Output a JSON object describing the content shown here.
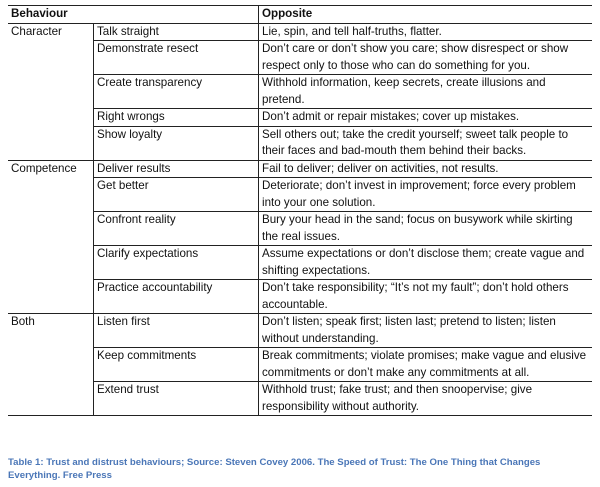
{
  "table": {
    "headers": [
      "Behaviour",
      "",
      "Opposite"
    ],
    "groups": [
      {
        "category": "Character",
        "rows": [
          {
            "behaviour": "Talk straight",
            "opposite": "Lie, spin, and tell half-truths, flatter."
          },
          {
            "behaviour": "Demonstrate resect",
            "opposite": "Don’t care or don’t show you care; show disrespect or show respect only to those who can do something for you."
          },
          {
            "behaviour": "Create transparency",
            "opposite": "Withhold information, keep secrets, create illusions and pretend."
          },
          {
            "behaviour": "Right wrongs",
            "opposite": "Don’t admit or repair mistakes; cover up mistakes."
          },
          {
            "behaviour": "Show loyalty",
            "opposite": "Sell others out; take the credit yourself; sweet talk people to their faces and bad-mouth them behind their backs."
          }
        ]
      },
      {
        "category": "Competence",
        "rows": [
          {
            "behaviour": "Deliver results",
            "opposite": "Fail to deliver; deliver on activities, not results."
          },
          {
            "behaviour": "Get better",
            "opposite": "Deteriorate; don’t invest in improvement; force every problem into your one solution."
          },
          {
            "behaviour": "Confront reality",
            "opposite": "Bury your head in the sand; focus on busywork while skirting the real issues."
          },
          {
            "behaviour": "Clarify expectations",
            "opposite": "Assume expectations or don’t disclose them; create vague and shifting expectations."
          },
          {
            "behaviour": "Practice accountability",
            "opposite": "Don’t take responsibility; “It’s not my fault”; don’t hold others accountable."
          }
        ]
      },
      {
        "category": "Both",
        "rows": [
          {
            "behaviour": "Listen first",
            "opposite": "Don’t listen; speak first; listen last;  pretend to listen; listen without understanding."
          },
          {
            "behaviour": "Keep commitments",
            "opposite": "Break commitments; violate promises; make vague and elusive commitments or don’t make any commitments at all."
          },
          {
            "behaviour": "Extend trust",
            "opposite": "Withhold trust; fake trust; and then snoopervise; give responsibility without authority."
          }
        ]
      }
    ]
  },
  "caption": "Table 1: Trust and distrust behaviours; Source: Steven Covey 2006. The Speed of Trust: The One Thing that Changes Everything. Free Press"
}
